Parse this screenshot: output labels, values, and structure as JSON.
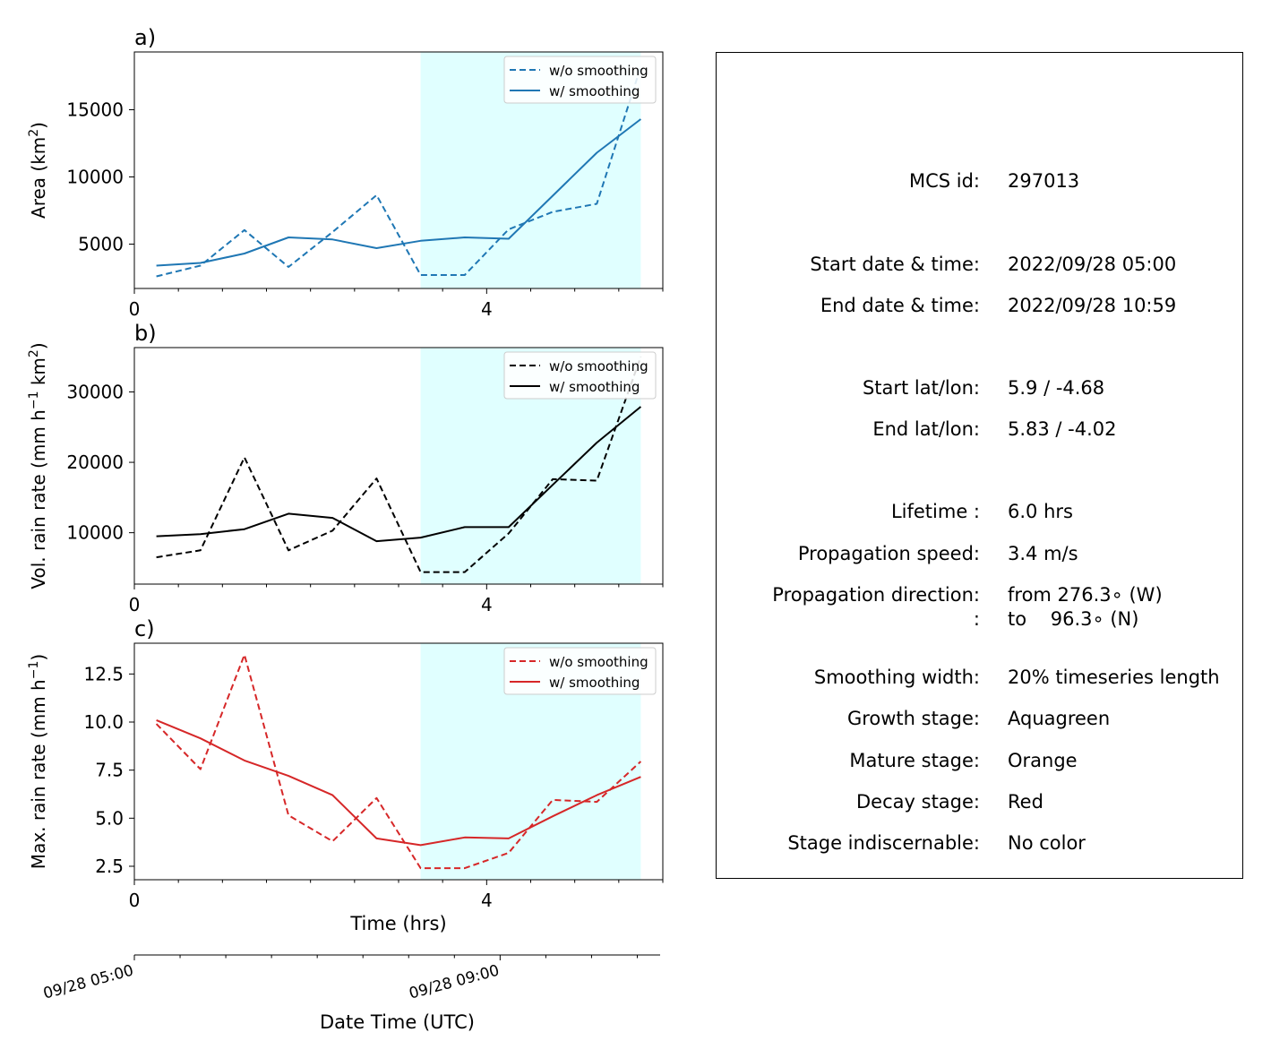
{
  "chart_data": [
    {
      "type": "line",
      "panel_label": "a)",
      "ylabel": "Area  (km$^2$)",
      "ylabel_main": "Area  (km",
      "ylabel_sup": "2",
      "ylabel_end": ")",
      "xlim": [
        0,
        6
      ],
      "ylim": [
        1700,
        19300
      ],
      "yticks": [
        5000,
        10000,
        15000
      ],
      "xticks": [
        0,
        4
      ],
      "shaded_x_range": [
        3.25,
        5.75
      ],
      "color": "#1f77b4",
      "legend_position": "upper right",
      "x": [
        0.25,
        0.75,
        1.25,
        1.75,
        2.25,
        2.75,
        3.25,
        3.75,
        4.25,
        4.75,
        5.25,
        5.75
      ],
      "series": [
        {
          "name": "w/o smoothing",
          "style": "dashed",
          "values": [
            2600,
            3400,
            6050,
            3300,
            5900,
            8650,
            2700,
            2700,
            6100,
            7400,
            8000,
            18200
          ]
        },
        {
          "name": "w/ smoothing",
          "style": "solid",
          "values": [
            3400,
            3600,
            4300,
            5500,
            5350,
            4700,
            5250,
            5500,
            5400,
            8600,
            11800,
            14300
          ]
        }
      ]
    },
    {
      "type": "line",
      "panel_label": "b)",
      "ylabel_main": "Vol. rain rate (mm h",
      "ylabel_sup": "−1",
      "ylabel_mid": " km",
      "ylabel_sup2": "2",
      "ylabel_end": ")",
      "xlim": [
        0,
        6
      ],
      "ylim": [
        2700,
        36300
      ],
      "yticks": [
        10000,
        20000,
        30000
      ],
      "xticks": [
        0,
        4
      ],
      "shaded_x_range": [
        3.25,
        5.75
      ],
      "color": "#000000",
      "legend_position": "upper right",
      "x": [
        0.25,
        0.75,
        1.25,
        1.75,
        2.25,
        2.75,
        3.25,
        3.75,
        4.25,
        4.75,
        5.25,
        5.75
      ],
      "series": [
        {
          "name": "w/o smoothing",
          "style": "dashed",
          "values": [
            6500,
            7500,
            20700,
            7500,
            10300,
            17700,
            4400,
            4400,
            9900,
            17600,
            17400,
            35000
          ]
        },
        {
          "name": "w/ smoothing",
          "style": "solid",
          "values": [
            9500,
            9800,
            10500,
            12700,
            12100,
            8800,
            9300,
            10800,
            10800,
            16800,
            22800,
            27900
          ]
        }
      ]
    },
    {
      "type": "line",
      "panel_label": "c)",
      "ylabel_main": "Max. rain rate  (mm h",
      "ylabel_sup": "−1",
      "ylabel_end": ")",
      "xlabel": "Time (hrs)",
      "xlim": [
        0,
        6
      ],
      "ylim": [
        1.8,
        14.1
      ],
      "yticks": [
        2.5,
        5.0,
        7.5,
        10.0,
        12.5
      ],
      "xticks": [
        0,
        4
      ],
      "shaded_x_range": [
        3.25,
        5.75
      ],
      "color": "#d62728",
      "legend_position": "upper right",
      "x": [
        0.25,
        0.75,
        1.25,
        1.75,
        2.25,
        2.75,
        3.25,
        3.75,
        4.25,
        4.75,
        5.25,
        5.75
      ],
      "series": [
        {
          "name": "w/o smoothing",
          "style": "dashed",
          "values": [
            9.9,
            7.55,
            13.5,
            5.15,
            3.8,
            6.05,
            2.4,
            2.4,
            3.2,
            5.95,
            5.85,
            7.95
          ]
        },
        {
          "name": "w/ smoothing",
          "style": "solid",
          "values": [
            10.1,
            9.15,
            8.0,
            7.2,
            6.2,
            3.95,
            3.6,
            4.0,
            3.95,
            5.1,
            6.2,
            7.15
          ]
        }
      ]
    }
  ],
  "datetime_axis": {
    "xlabel": "Date Time (UTC)",
    "tick_labels": [
      {
        "value": 0,
        "label": "09/28 05:00"
      },
      {
        "value": 4,
        "label": "09/28 09:00"
      }
    ],
    "xlim": [
      0,
      5.75
    ]
  },
  "info": {
    "rows": [
      {
        "label": "MCS id:",
        "value": "297013"
      },
      {
        "label": "Start date & time:",
        "value": "2022/09/28 05:00"
      },
      {
        "label": "End date & time:",
        "value": "2022/09/28 10:59"
      },
      {
        "label": "Start lat/lon:",
        "value": "5.9 / -4.68"
      },
      {
        "label": "End lat/lon:",
        "value": "5.83 / -4.02"
      },
      {
        "label": "Lifetime :",
        "value": "6.0 hrs"
      },
      {
        "label": "Propagation speed:",
        "value": "3.4 m/s"
      },
      {
        "label": "Propagation direction:",
        "value": "from 276.3∘ (W)"
      },
      {
        "label": ":",
        "value": "to    96.3∘ (N)"
      },
      {
        "label": "Smoothing width:",
        "value": "20% timeseries length"
      },
      {
        "label": "Growth stage:",
        "value": "Aquagreen"
      },
      {
        "label": "Mature stage:",
        "value": "Orange"
      },
      {
        "label": "Decay stage:",
        "value": "Red"
      },
      {
        "label": "Stage indiscernable:",
        "value": "No color"
      }
    ]
  },
  "colors": {
    "shade": "#e0ffff",
    "blue": "#1f77b4",
    "black": "#000000",
    "red": "#d62728"
  }
}
